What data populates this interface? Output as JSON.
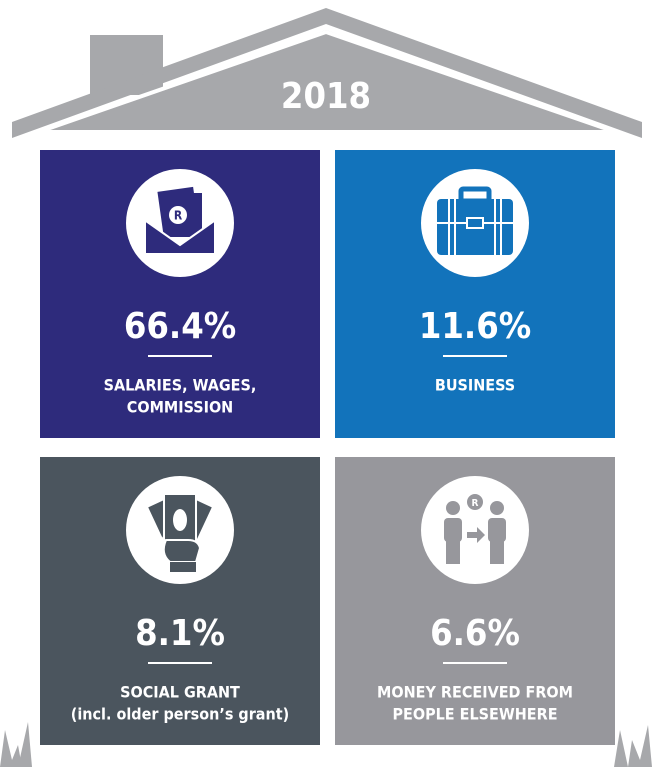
{
  "year": "2018",
  "tiles": [
    {
      "value": "66.4%",
      "label": [
        "SALARIES, WAGES,",
        "COMMISSION"
      ],
      "color": "#2e2b7c",
      "icon": "envelope",
      "icon_text": "R"
    },
    {
      "value": "11.6%",
      "label": [
        "BUSINESS"
      ],
      "color": "#1273bb",
      "icon": "briefcase"
    },
    {
      "value": "8.1%",
      "label": [
        "SOCIAL GRANT",
        "(incl. older person’s grant)"
      ],
      "color": "#4b555e",
      "icon": "cash"
    },
    {
      "value": "6.6%",
      "label": [
        "MONEY RECEIVED FROM",
        "PEOPLE ELSEWHERE"
      ],
      "color": "#97979c",
      "icon": "people",
      "icon_text": "R"
    }
  ]
}
